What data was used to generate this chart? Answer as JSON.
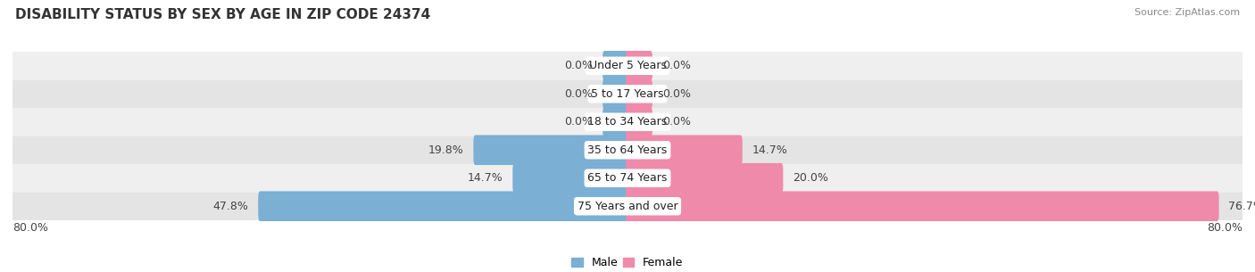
{
  "title": "DISABILITY STATUS BY SEX BY AGE IN ZIP CODE 24374",
  "source": "Source: ZipAtlas.com",
  "categories": [
    "Under 5 Years",
    "5 to 17 Years",
    "18 to 34 Years",
    "35 to 64 Years",
    "65 to 74 Years",
    "75 Years and over"
  ],
  "male_values": [
    0.0,
    0.0,
    0.0,
    19.8,
    14.7,
    47.8
  ],
  "female_values": [
    0.0,
    0.0,
    0.0,
    14.7,
    20.0,
    76.7
  ],
  "male_color": "#7bafd4",
  "female_color": "#f08aaa",
  "row_bg_colors": [
    "#efefef",
    "#e4e4e4"
  ],
  "max_val": 80.0,
  "min_bar_display": 3.0,
  "label_fontsize": 9,
  "title_fontsize": 11,
  "category_fontsize": 9,
  "bar_height": 0.58,
  "figsize": [
    14.06,
    3.05
  ],
  "dpi": 100
}
